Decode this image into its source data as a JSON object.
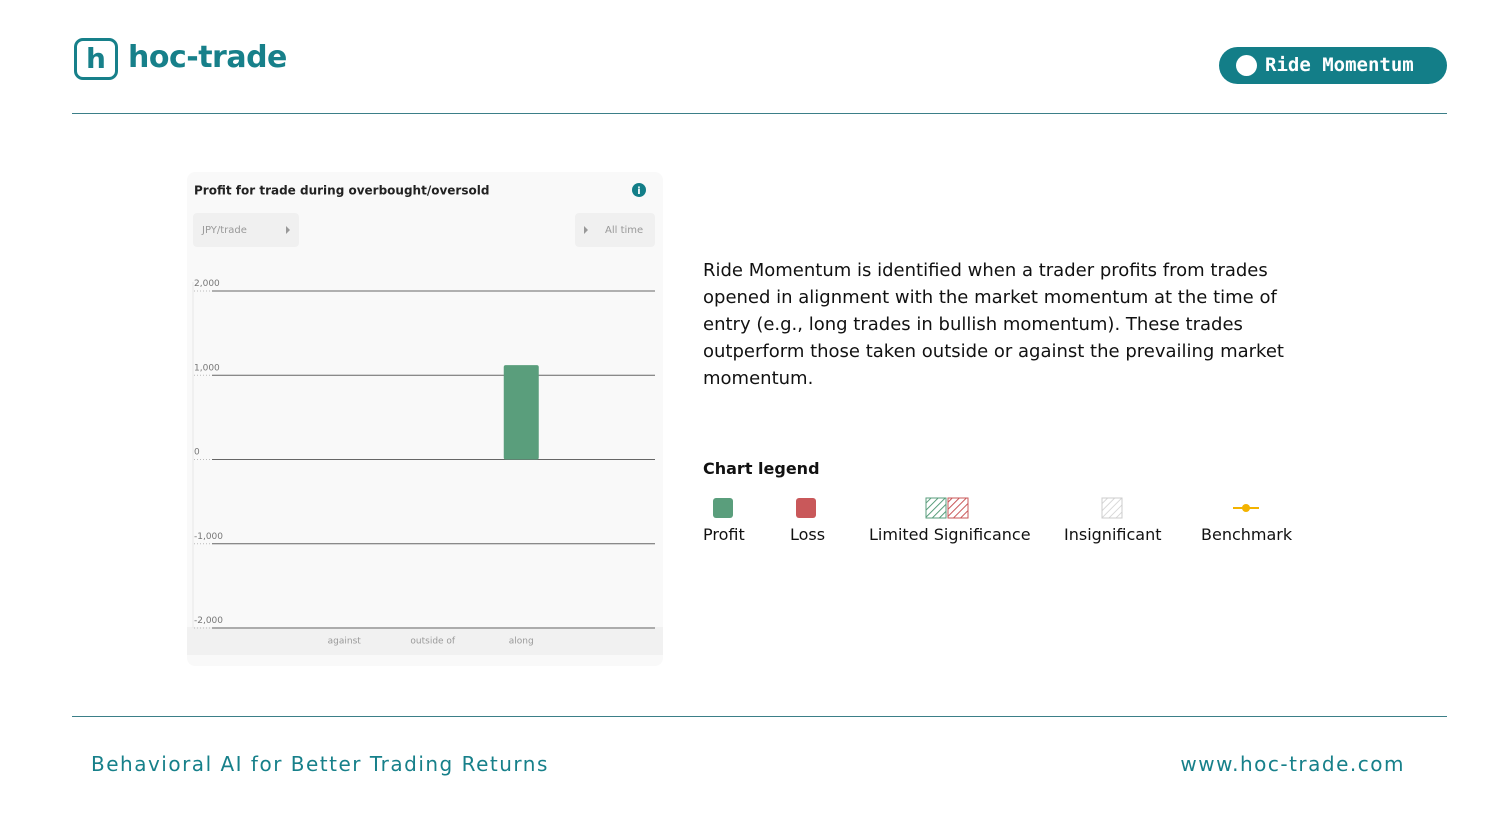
{
  "header": {
    "logo": "hoc-trade",
    "badge": "Ride Momentum"
  },
  "chart_data": {
    "type": "bar",
    "title": "Profit for trade during overbought/oversold",
    "unit_selector": "JPY/trade",
    "period_selector": "All time",
    "categories": [
      "against",
      "outside of",
      "along"
    ],
    "values": [
      0,
      0,
      1120
    ],
    "color": "#5a9e7c",
    "ylim": [
      -2000,
      2000
    ],
    "yticks": [
      {
        "value": -2000,
        "label": "-2,000"
      },
      {
        "value": -1000,
        "label": "-1,000"
      },
      0,
      {
        "value": 1000,
        "label": "1,000"
      },
      {
        "value": 2000,
        "label": "2,000"
      }
    ],
    "grid": true
  },
  "description": "Ride Momentum is identified when a trader profits from trades opened in alignment with the market momentum at the time of entry (e.g., long trades in bullish momentum). These trades outperform those taken outside or against the prevailing market momentum.",
  "legend": {
    "title": "Chart legend",
    "items": [
      "Profit",
      "Loss",
      "Limited Significance",
      "Insignificant",
      "Benchmark"
    ]
  },
  "footer": {
    "tagline": "Behavioral AI for Better Trading Returns",
    "url": "www.hoc-trade.com"
  }
}
